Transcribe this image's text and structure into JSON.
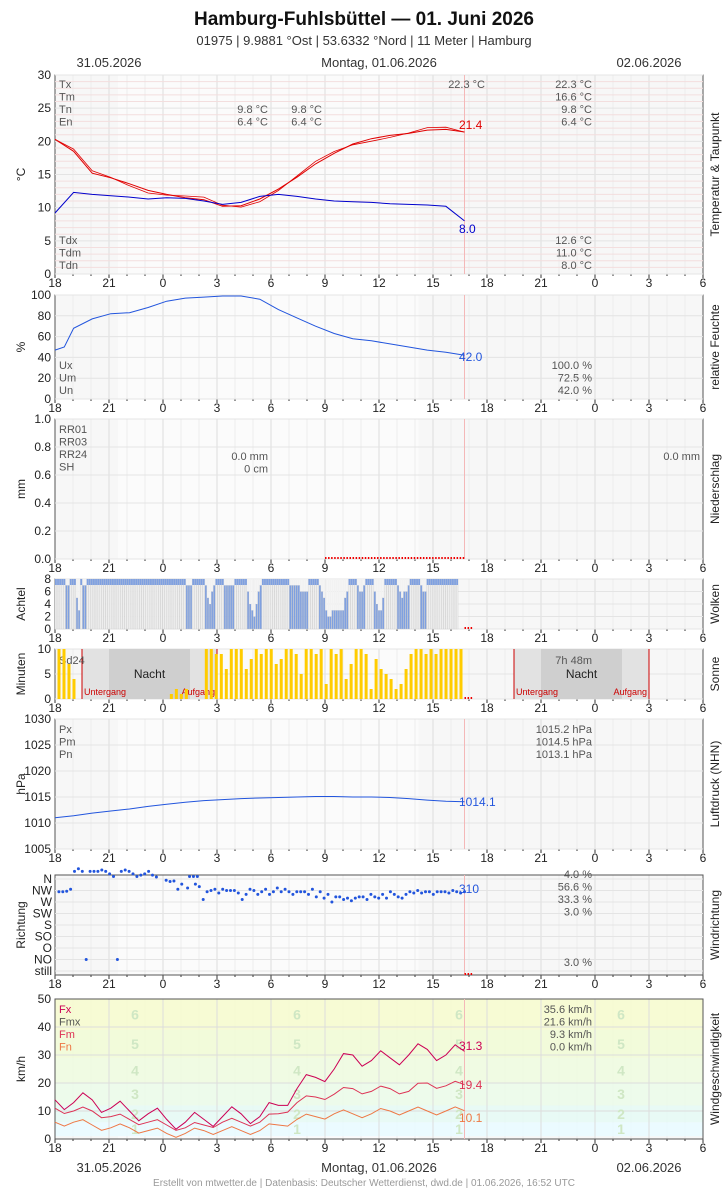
{
  "header": {
    "title": "Hamburg-Fuhlsbüttel  —  01. Juni 2026",
    "subtitle": "01975  |  9.9881 °Ost  |  53.6332 °Nord  |  11 Meter  |  Hamburg",
    "date_left": "31.05.2026",
    "date_center": "Montag, 01.06.2026",
    "date_right": "02.06.2026"
  },
  "footer": "Erstellt von mtwetter.de | Datenbasis: Deutscher Wetterdienst, dwd.de | 01.06.2026, 16:52 UTC",
  "x_ticks": [
    "18",
    "21",
    "0",
    "3",
    "6",
    "9",
    "12",
    "15",
    "18",
    "21",
    "0",
    "3",
    "6"
  ],
  "chart_data": [
    {
      "type": "line",
      "side_label": "Temperatur & Taupunkt",
      "ylabel": "°C",
      "ylim": [
        0,
        30
      ],
      "yticks": [
        "0",
        "5",
        "10",
        "15",
        "20",
        "25",
        "30"
      ],
      "legend_top": [
        "Tx",
        "Tm",
        "Tn",
        "En"
      ],
      "legend_bottom": [
        "Tdx",
        "Tdm",
        "Tdn"
      ],
      "stats_day1": [
        "9.8 °C",
        "6.4 °C"
      ],
      "stats_day1b": [
        "9.8 °C",
        "6.4 °C"
      ],
      "stats_peak": "22.3 °C",
      "stats_right_top": [
        "22.3 °C",
        "16.6 °C",
        "9.8 °C",
        "6.4 °C"
      ],
      "stats_right_bottom": [
        "12.6 °C",
        "11.0 °C",
        "8.0 °C"
      ],
      "last_temp": "21.4",
      "last_dew": "8.0",
      "series": [
        {
          "key": "temp",
          "color": "#e00000",
          "x": [
            0,
            1,
            2,
            3,
            4,
            5,
            6,
            7,
            8,
            9,
            10,
            11,
            12,
            13,
            14,
            15,
            16,
            17,
            18,
            19,
            20,
            21,
            22
          ],
          "values": [
            20.3,
            18.5,
            15.2,
            14.5,
            13.6,
            12.6,
            12.0,
            11.5,
            11.2,
            10.2,
            10.3,
            11.3,
            12.8,
            14.6,
            16.6,
            18.2,
            19.6,
            20.4,
            20.9,
            21.2,
            21.7,
            21.8,
            21.4
          ]
        },
        {
          "key": "dew",
          "color": "#0000cc",
          "x": [
            0,
            1,
            2,
            3,
            4,
            5,
            6,
            7,
            8,
            9,
            10,
            11,
            12,
            13,
            14,
            15,
            16,
            17,
            18,
            19,
            20,
            21,
            22
          ],
          "values": [
            9.2,
            12.3,
            12.0,
            11.8,
            11.6,
            11.3,
            11.5,
            11.4,
            11.0,
            10.5,
            10.8,
            11.7,
            12.0,
            11.7,
            11.3,
            11.0,
            10.9,
            10.8,
            10.6,
            10.5,
            10.4,
            10.2,
            8.0
          ]
        }
      ]
    },
    {
      "type": "line",
      "side_label": "relative Feuchte",
      "ylabel": "%",
      "ylim": [
        0,
        100
      ],
      "yticks": [
        "0",
        "20",
        "40",
        "60",
        "80",
        "100"
      ],
      "legend": [
        "Ux",
        "Um",
        "Un"
      ],
      "stats": [
        "100.0 %",
        "72.5 %",
        "42.0 %"
      ],
      "last_value": "42.0",
      "series": [
        {
          "key": "rh",
          "color": "#2255dd",
          "x": [
            0,
            0.5,
            1,
            2,
            3,
            4,
            5,
            6,
            7,
            8,
            9,
            10,
            11,
            12,
            13,
            14,
            15,
            16,
            17,
            18,
            19,
            20,
            21,
            22
          ],
          "values": [
            47,
            50,
            68,
            77,
            82,
            83,
            88,
            94,
            97,
            98,
            99,
            99,
            96,
            86,
            78,
            70,
            63,
            58,
            56,
            53,
            50,
            47,
            45,
            42
          ]
        }
      ]
    },
    {
      "type": "bar",
      "side_label": "Niederschlag",
      "ylabel": "mm",
      "ylim": [
        0,
        1.0
      ],
      "yticks": [
        "0.0",
        "0.2",
        "0.4",
        "0.6",
        "0.8",
        "1.0"
      ],
      "legend": [
        "RR01",
        "RR03",
        "RR24",
        "SH"
      ],
      "stats_day1": [
        "0.0 mm",
        "0 cm"
      ],
      "stats_right": "0.0 mm",
      "values": []
    },
    {
      "type": "bar",
      "side_label": "Wolken",
      "ylabel": "Achtel",
      "ylim": [
        0,
        8
      ],
      "yticks": [
        "0",
        "2",
        "4",
        "6",
        "8"
      ],
      "values": [
        8,
        8,
        8,
        8,
        8,
        7,
        7,
        8,
        8,
        8,
        5,
        3,
        8,
        7,
        7,
        8,
        8,
        8,
        8,
        8,
        8,
        8,
        8,
        8,
        8,
        8,
        8,
        8,
        8,
        8,
        8,
        8,
        8,
        8,
        8,
        8,
        8,
        8,
        8,
        8,
        8,
        8,
        8,
        8,
        8,
        8,
        8,
        8,
        8,
        8,
        8,
        8,
        8,
        8,
        8,
        8,
        8,
        8,
        8,
        8,
        8,
        8,
        7,
        7,
        7,
        8,
        8,
        8,
        8,
        8,
        8,
        7,
        5,
        4,
        6,
        7,
        8,
        8,
        8,
        8,
        7,
        7,
        7,
        7,
        7,
        8,
        8,
        8,
        8,
        8,
        8,
        6,
        4,
        3,
        2,
        4,
        6,
        7,
        8,
        8,
        8,
        8,
        8,
        8,
        8,
        8,
        8,
        8,
        8,
        8,
        8,
        7,
        7,
        7,
        7,
        7,
        6,
        6,
        6,
        6,
        8,
        8,
        8,
        8,
        8,
        7,
        6,
        5,
        3,
        2,
        2,
        3,
        3,
        3,
        3,
        3,
        3,
        5,
        6,
        8,
        8,
        8,
        8,
        7,
        6,
        6,
        7,
        8,
        8,
        8,
        8,
        6,
        4,
        3,
        3,
        5,
        8,
        8,
        8,
        8,
        8,
        8,
        7,
        6,
        5,
        6,
        6,
        7,
        8,
        8,
        8,
        8,
        8,
        7,
        6,
        6,
        8,
        8,
        8,
        8,
        8,
        8,
        8,
        8,
        8,
        8,
        8,
        8,
        8,
        8,
        8
      ]
    },
    {
      "type": "bar",
      "side_label": "Sonne",
      "ylabel": "Minuten",
      "ylim": [
        0,
        10
      ],
      "yticks": [
        "0",
        "5",
        "10"
      ],
      "legend": [
        "Sd24"
      ],
      "night_label": "Nacht",
      "sunset_label": "Untergang",
      "sunrise_label": "Aufgang",
      "day_duration": "7h 48m",
      "x": [
        0.1,
        0.3,
        0.5,
        0.7,
        4.6,
        4.8,
        5.0,
        5.2,
        6.0,
        6.2,
        6.4,
        6.6,
        6.8,
        7.0,
        7.2,
        7.4,
        7.6,
        7.8,
        8.0,
        8.2,
        8.4,
        8.6,
        8.8,
        9.0,
        9.2,
        9.4,
        9.6,
        9.8,
        10.0,
        10.2,
        10.4,
        10.6,
        10.8,
        11.0,
        11.2,
        11.4,
        11.6,
        11.8,
        12.0,
        12.2,
        12.4,
        12.6,
        12.8,
        13.0,
        13.2,
        13.4,
        13.6,
        13.8,
        14.0,
        14.2,
        14.4,
        14.6,
        14.8,
        15.0,
        15.2,
        15.4,
        15.6,
        15.8,
        16.0,
        16.2
      ],
      "values": [
        10,
        10,
        7,
        4,
        1,
        2,
        1,
        2,
        10,
        10,
        9,
        9,
        6,
        10,
        10,
        10,
        6,
        8,
        10,
        9,
        10,
        10,
        7,
        8,
        10,
        10,
        9,
        5,
        10,
        10,
        9,
        10,
        3,
        10,
        9,
        10,
        4,
        7,
        10,
        10,
        9,
        2,
        8,
        6,
        5,
        4,
        2,
        3,
        6,
        9,
        10,
        10,
        9,
        10,
        9,
        10,
        10,
        10,
        10,
        10
      ]
    },
    {
      "type": "line",
      "side_label": "Luftdruck (NHN)",
      "ylabel": "hPa",
      "ylim": [
        1005,
        1030
      ],
      "yticks": [
        "1005",
        "1010",
        "1015",
        "1020",
        "1025",
        "1030"
      ],
      "legend": [
        "Px",
        "Pm",
        "Pn"
      ],
      "stats": [
        "1015.2 hPa",
        "1014.5 hPa",
        "1013.1 hPa"
      ],
      "last_value": "1014.1",
      "series": [
        {
          "key": "p",
          "color": "#2255dd",
          "x": [
            0,
            1,
            2,
            3,
            4,
            5,
            6,
            7,
            8,
            9,
            10,
            11,
            12,
            13,
            14,
            15,
            16,
            17,
            18,
            19,
            20,
            21,
            22
          ],
          "values": [
            1011.0,
            1011.4,
            1011.9,
            1012.3,
            1012.7,
            1013.2,
            1013.6,
            1014.0,
            1014.3,
            1014.5,
            1014.7,
            1014.8,
            1014.9,
            1015.0,
            1015.1,
            1015.1,
            1015.0,
            1015.0,
            1014.9,
            1014.7,
            1014.4,
            1014.2,
            1014.1
          ]
        }
      ]
    },
    {
      "type": "scatter",
      "side_label": "Windrichtung",
      "ylabel": "Richtung",
      "ycats": [
        "still",
        "NO",
        "O",
        "SO",
        "S",
        "SW",
        "W",
        "NW",
        "N"
      ],
      "stats": [
        "4.0 %",
        "56.6 %",
        "33.3 %",
        "3.0 %"
      ],
      "stats_still": "3.0 %",
      "last_value": "310",
      "points_a": [
        [
          0.2,
          310
        ],
        [
          0.4,
          310
        ],
        [
          0.6,
          312
        ],
        [
          0.8,
          320
        ]
      ],
      "points_b": [
        [
          1.0,
          30
        ],
        [
          1.2,
          40
        ],
        [
          1.4,
          30
        ],
        [
          1.6,
          45
        ],
        [
          1.8,
          30
        ],
        [
          2.0,
          30
        ],
        [
          2.2,
          30
        ],
        [
          2.4,
          35
        ],
        [
          2.6,
          30
        ],
        [
          2.8,
          20
        ],
        [
          3.0,
          10
        ],
        [
          3.2,
          45
        ],
        [
          3.4,
          30
        ],
        [
          3.6,
          35
        ],
        [
          3.8,
          30
        ],
        [
          4.0,
          20
        ],
        [
          4.2,
          10
        ],
        [
          4.4,
          15
        ],
        [
          4.6,
          20
        ],
        [
          4.8,
          30
        ],
        [
          5.0,
          15
        ],
        [
          5.2,
          8
        ],
        [
          6.9,
          10
        ],
        [
          7.1,
          10
        ],
        [
          7.3,
          10
        ]
      ],
      "points_c": [
        [
          5.7,
          355
        ],
        [
          5.9,
          350
        ],
        [
          6.1,
          352
        ],
        [
          6.3,
          320
        ],
        [
          6.5,
          340
        ],
        [
          6.8,
          325
        ],
        [
          7.2,
          340
        ],
        [
          7.4,
          330
        ],
        [
          7.6,
          280
        ],
        [
          7.8,
          310
        ],
        [
          8.0,
          315
        ],
        [
          8.2,
          320
        ],
        [
          8.4,
          305
        ],
        [
          8.6,
          320
        ],
        [
          8.8,
          315
        ],
        [
          9.0,
          315
        ],
        [
          9.2,
          315
        ],
        [
          9.4,
          305
        ],
        [
          9.6,
          280
        ],
        [
          9.8,
          300
        ],
        [
          10.0,
          320
        ],
        [
          10.2,
          315
        ],
        [
          10.4,
          300
        ],
        [
          10.6,
          310
        ],
        [
          10.8,
          320
        ],
        [
          11.0,
          300
        ],
        [
          11.2,
          310
        ],
        [
          11.4,
          325
        ],
        [
          11.6,
          310
        ],
        [
          11.8,
          320
        ],
        [
          12.0,
          310
        ],
        [
          12.2,
          300
        ],
        [
          12.4,
          310
        ],
        [
          12.6,
          310
        ],
        [
          12.8,
          310
        ],
        [
          13.0,
          300
        ],
        [
          13.2,
          320
        ],
        [
          13.4,
          290
        ],
        [
          13.6,
          310
        ],
        [
          13.8,
          285
        ],
        [
          14.0,
          300
        ],
        [
          14.2,
          270
        ],
        [
          14.4,
          290
        ],
        [
          14.6,
          290
        ],
        [
          14.8,
          280
        ],
        [
          15.0,
          285
        ],
        [
          15.2,
          275
        ],
        [
          15.4,
          285
        ],
        [
          15.6,
          290
        ],
        [
          15.8,
          290
        ],
        [
          16.0,
          280
        ],
        [
          16.2,
          300
        ],
        [
          16.4,
          290
        ],
        [
          16.6,
          285
        ],
        [
          16.8,
          300
        ],
        [
          17.0,
          285
        ],
        [
          17.2,
          310
        ],
        [
          17.4,
          300
        ],
        [
          17.6,
          290
        ],
        [
          17.8,
          285
        ],
        [
          18.0,
          300
        ],
        [
          18.2,
          310
        ],
        [
          18.4,
          305
        ],
        [
          18.6,
          315
        ],
        [
          18.8,
          305
        ],
        [
          19.0,
          310
        ],
        [
          19.2,
          310
        ],
        [
          19.4,
          300
        ],
        [
          19.6,
          310
        ],
        [
          19.8,
          310
        ],
        [
          20.0,
          310
        ],
        [
          20.2,
          305
        ],
        [
          20.4,
          315
        ],
        [
          20.6,
          310
        ],
        [
          20.8,
          305
        ],
        [
          21.0,
          310
        ]
      ]
    },
    {
      "type": "line",
      "side_label": "Windgeschwindigkeit",
      "ylabel": "km/h",
      "ylim": [
        0,
        50
      ],
      "yticks": [
        "0",
        "10",
        "20",
        "30",
        "40",
        "50"
      ],
      "legend": [
        "Fx",
        "Fmx",
        "Fm",
        "Fn"
      ],
      "stats": [
        "35.6 km/h",
        "21.6 km/h",
        "9.3 km/h",
        "0.0 km/h"
      ],
      "bft_labels": [
        "1",
        "2",
        "3",
        "4",
        "5",
        "6"
      ],
      "bft_limits": [
        1,
        6,
        12,
        20,
        29,
        39,
        50
      ],
      "last_fx": "31.3",
      "last_fmx": "19.4",
      "last_fm": "10.1",
      "series": [
        {
          "key": "fx",
          "color": "#cc0055",
          "x": [
            0,
            1,
            2,
            3,
            4,
            5,
            6,
            7,
            8,
            9,
            10,
            11,
            12,
            13,
            14,
            15,
            16,
            17,
            18,
            19,
            20,
            21,
            22
          ],
          "values": [
            14,
            13,
            14,
            11,
            10,
            9,
            7,
            6,
            7,
            8,
            9,
            8,
            12,
            18,
            22,
            25,
            30,
            28,
            29,
            30,
            32,
            30,
            31.3
          ]
        },
        {
          "key": "fmx",
          "color": "#dd3355",
          "x": [
            0,
            1,
            2,
            3,
            4,
            5,
            6,
            7,
            8,
            9,
            10,
            11,
            12,
            13,
            14,
            15,
            16,
            17,
            18,
            19,
            20,
            21,
            22
          ],
          "values": [
            11,
            10,
            10,
            8,
            7,
            6,
            5,
            4,
            5,
            6,
            6,
            6,
            9,
            13,
            15,
            16,
            18,
            17,
            18,
            17,
            20,
            19,
            19.4
          ]
        },
        {
          "key": "fm",
          "color": "#ee7744",
          "x": [
            0,
            1,
            2,
            3,
            4,
            5,
            6,
            7,
            8,
            9,
            10,
            11,
            12,
            13,
            14,
            15,
            16,
            17,
            18,
            19,
            20,
            21,
            22
          ],
          "values": [
            6,
            6,
            5,
            4,
            4,
            3,
            2,
            2,
            3,
            3,
            3,
            3,
            5,
            7,
            8,
            9,
            9,
            9,
            10,
            10,
            10,
            10,
            10.1
          ]
        }
      ]
    }
  ]
}
